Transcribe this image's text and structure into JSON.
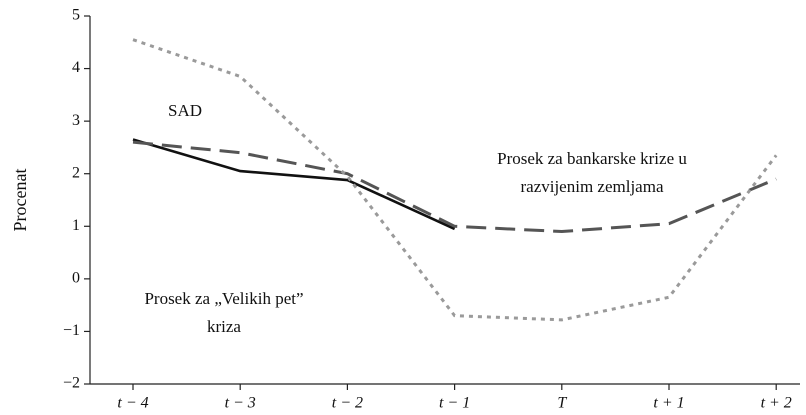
{
  "chart_data": {
    "type": "line",
    "y_label": "Procenat",
    "categories": [
      "t − 4",
      "t − 3",
      "t − 2",
      "t − 1",
      "T",
      "t + 1",
      "t + 2"
    ],
    "series": [
      {
        "name": "SAD",
        "color": "#111111",
        "style": "solid",
        "values": [
          2.65,
          2.05,
          1.88,
          0.95,
          null,
          null,
          null
        ]
      },
      {
        "name": "Prosek za bankarske krize u razvijenim zemljama",
        "color": "#555555",
        "style": "dashed",
        "values": [
          2.6,
          2.4,
          2.0,
          1.0,
          0.9,
          1.05,
          1.9
        ]
      },
      {
        "name": "Prosek za „Velikih pet” krize",
        "color": "#9a9a9a",
        "style": "dotted",
        "values": [
          4.55,
          3.85,
          1.95,
          -0.7,
          -0.78,
          -0.35,
          2.35
        ]
      }
    ],
    "annotations": [
      {
        "lines": [
          "SAD"
        ]
      },
      {
        "lines": [
          "Prosek za bankarske krize u",
          "razvijenim zemljama"
        ]
      },
      {
        "lines": [
          "Prosek za „Velikih pet”",
          "kriza"
        ]
      }
    ],
    "ylim": [
      -2,
      5
    ],
    "yticks": [
      {
        "value": -2,
        "label": "−2"
      },
      {
        "value": -1,
        "label": "−1"
      },
      0,
      1,
      2,
      3,
      4,
      5
    ]
  }
}
